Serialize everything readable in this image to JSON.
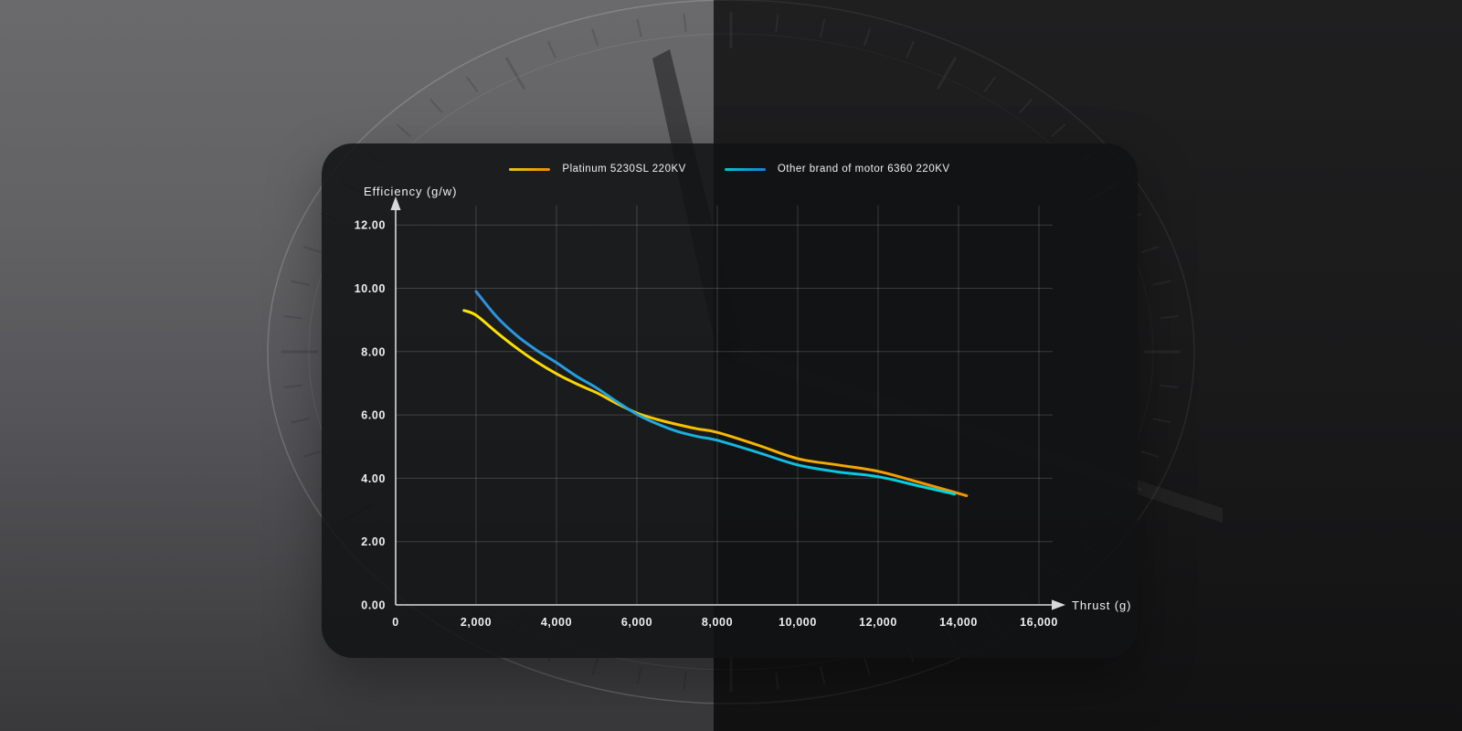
{
  "colors": {
    "background_left": "#616163",
    "background_right": "#1a1a1b",
    "panel": "#121316",
    "gridline": "rgba(255,255,255,0.17)",
    "axis": "#d9d9db",
    "text": "#eeeef0"
  },
  "chart_data": {
    "type": "line",
    "title": "",
    "xlabel": "Thrust (g)",
    "ylabel": "Efficiency (g/w)",
    "xlim": [
      0,
      16000
    ],
    "ylim": [
      0,
      12
    ],
    "grid": true,
    "legend_position": "top-center",
    "x_ticks": [
      "0",
      "2,000",
      "4,000",
      "6,000",
      "8,000",
      "10,000",
      "12,000",
      "14,000",
      "16,000"
    ],
    "x_tick_values": [
      0,
      2000,
      4000,
      6000,
      8000,
      10000,
      12000,
      14000,
      16000
    ],
    "y_ticks": [
      "0.00",
      "2.00",
      "4.00",
      "6.00",
      "8.00",
      "10.00",
      "12.00"
    ],
    "y_tick_values": [
      0,
      2,
      4,
      6,
      8,
      10,
      12
    ],
    "series": [
      {
        "name": "Platinum 5230SL 220KV",
        "color_start": "#ffe600",
        "color_end": "#f29100",
        "legend_gradient": [
          "#e3c31d",
          "#f28c00"
        ],
        "points": [
          [
            1700,
            9.3
          ],
          [
            2000,
            9.15
          ],
          [
            2500,
            8.62
          ],
          [
            3000,
            8.12
          ],
          [
            3500,
            7.68
          ],
          [
            4000,
            7.3
          ],
          [
            4500,
            6.98
          ],
          [
            5000,
            6.7
          ],
          [
            5500,
            6.36
          ],
          [
            6000,
            6.06
          ],
          [
            6500,
            5.86
          ],
          [
            7000,
            5.7
          ],
          [
            7500,
            5.56
          ],
          [
            8000,
            5.45
          ],
          [
            9000,
            5.05
          ],
          [
            10000,
            4.62
          ],
          [
            11000,
            4.42
          ],
          [
            12000,
            4.22
          ],
          [
            13000,
            3.88
          ],
          [
            14200,
            3.45
          ]
        ]
      },
      {
        "name": "Other brand of motor 6360 220KV",
        "color_start": "#2f8fdd",
        "color_end": "#00d8e0",
        "legend_gradient": [
          "#00c4d4",
          "#1f7fd0"
        ],
        "points": [
          [
            2000,
            9.9
          ],
          [
            2500,
            9.12
          ],
          [
            3000,
            8.52
          ],
          [
            3500,
            8.05
          ],
          [
            4000,
            7.65
          ],
          [
            4500,
            7.22
          ],
          [
            5000,
            6.85
          ],
          [
            5500,
            6.42
          ],
          [
            6000,
            6.02
          ],
          [
            6500,
            5.72
          ],
          [
            7000,
            5.48
          ],
          [
            7500,
            5.32
          ],
          [
            8000,
            5.2
          ],
          [
            9000,
            4.82
          ],
          [
            10000,
            4.42
          ],
          [
            11000,
            4.2
          ],
          [
            12000,
            4.05
          ],
          [
            13000,
            3.76
          ],
          [
            13900,
            3.5
          ]
        ]
      }
    ]
  }
}
